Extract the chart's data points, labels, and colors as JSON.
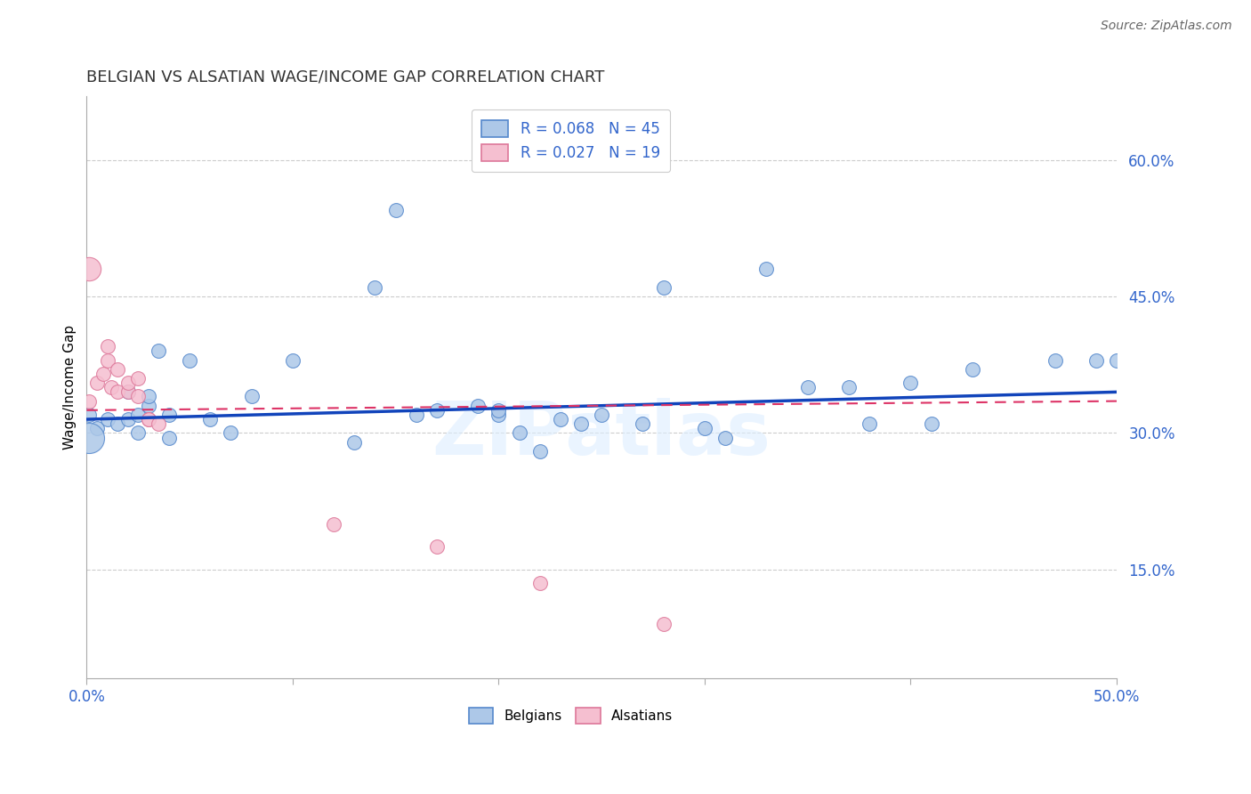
{
  "title": "BELGIAN VS ALSATIAN WAGE/INCOME GAP CORRELATION CHART",
  "source": "Source: ZipAtlas.com",
  "ylabel": "Wage/Income Gap",
  "watermark": "ZIPatlas",
  "xlim": [
    0.0,
    0.5
  ],
  "ylim": [
    0.03,
    0.67
  ],
  "xtick_vals": [
    0.0,
    0.1,
    0.2,
    0.3,
    0.4,
    0.5
  ],
  "xtick_labels_show": [
    "0.0%",
    "",
    "",
    "",
    "",
    "50.0%"
  ],
  "ytick_vals_right": [
    0.15,
    0.3,
    0.45,
    0.6
  ],
  "ytick_labels_right": [
    "15.0%",
    "30.0%",
    "45.0%",
    "60.0%"
  ],
  "grid_color": "#cccccc",
  "belgian_color": "#adc8e8",
  "alsatian_color": "#f5bfd0",
  "belgian_edge": "#5588cc",
  "alsatian_edge": "#dd7799",
  "trend_blue": "#1144bb",
  "trend_pink": "#dd3366",
  "R_belgian": 0.068,
  "N_belgian": 45,
  "R_alsatian": 0.027,
  "N_alsatian": 19,
  "legend_color": "#3366cc",
  "background_color": "#ffffff",
  "marker_size": 130,
  "large_marker_size": 600,
  "belgians_x": [
    0.001,
    0.005,
    0.01,
    0.015,
    0.02,
    0.02,
    0.025,
    0.025,
    0.03,
    0.03,
    0.035,
    0.04,
    0.04,
    0.05,
    0.06,
    0.07,
    0.08,
    0.1,
    0.13,
    0.14,
    0.15,
    0.16,
    0.17,
    0.19,
    0.2,
    0.2,
    0.21,
    0.22,
    0.23,
    0.24,
    0.25,
    0.27,
    0.28,
    0.3,
    0.31,
    0.33,
    0.35,
    0.37,
    0.38,
    0.4,
    0.41,
    0.43,
    0.47,
    0.49,
    0.5
  ],
  "belgians_y": [
    0.32,
    0.305,
    0.315,
    0.31,
    0.315,
    0.345,
    0.32,
    0.3,
    0.33,
    0.34,
    0.39,
    0.295,
    0.32,
    0.38,
    0.315,
    0.3,
    0.34,
    0.38,
    0.29,
    0.46,
    0.545,
    0.32,
    0.325,
    0.33,
    0.32,
    0.325,
    0.3,
    0.28,
    0.315,
    0.31,
    0.32,
    0.31,
    0.46,
    0.305,
    0.295,
    0.48,
    0.35,
    0.35,
    0.31,
    0.355,
    0.31,
    0.37,
    0.38,
    0.38,
    0.38
  ],
  "belgians_large_x": [
    0.001
  ],
  "belgians_large_y": [
    0.295
  ],
  "alsatians_x": [
    0.001,
    0.005,
    0.008,
    0.01,
    0.01,
    0.012,
    0.015,
    0.015,
    0.02,
    0.02,
    0.025,
    0.025,
    0.03,
    0.03,
    0.035,
    0.12,
    0.17,
    0.22,
    0.28
  ],
  "alsatians_y": [
    0.335,
    0.355,
    0.365,
    0.38,
    0.395,
    0.35,
    0.345,
    0.37,
    0.345,
    0.355,
    0.34,
    0.36,
    0.315,
    0.315,
    0.31,
    0.2,
    0.175,
    0.135,
    0.09
  ],
  "alsatians_large_x": [
    0.001
  ],
  "alsatians_large_y": [
    0.48
  ],
  "trend_blue_x0": 0.0,
  "trend_blue_y0": 0.315,
  "trend_blue_x1": 0.5,
  "trend_blue_y1": 0.345,
  "trend_pink_x0": 0.0,
  "trend_pink_y0": 0.325,
  "trend_pink_x1": 0.5,
  "trend_pink_y1": 0.335
}
